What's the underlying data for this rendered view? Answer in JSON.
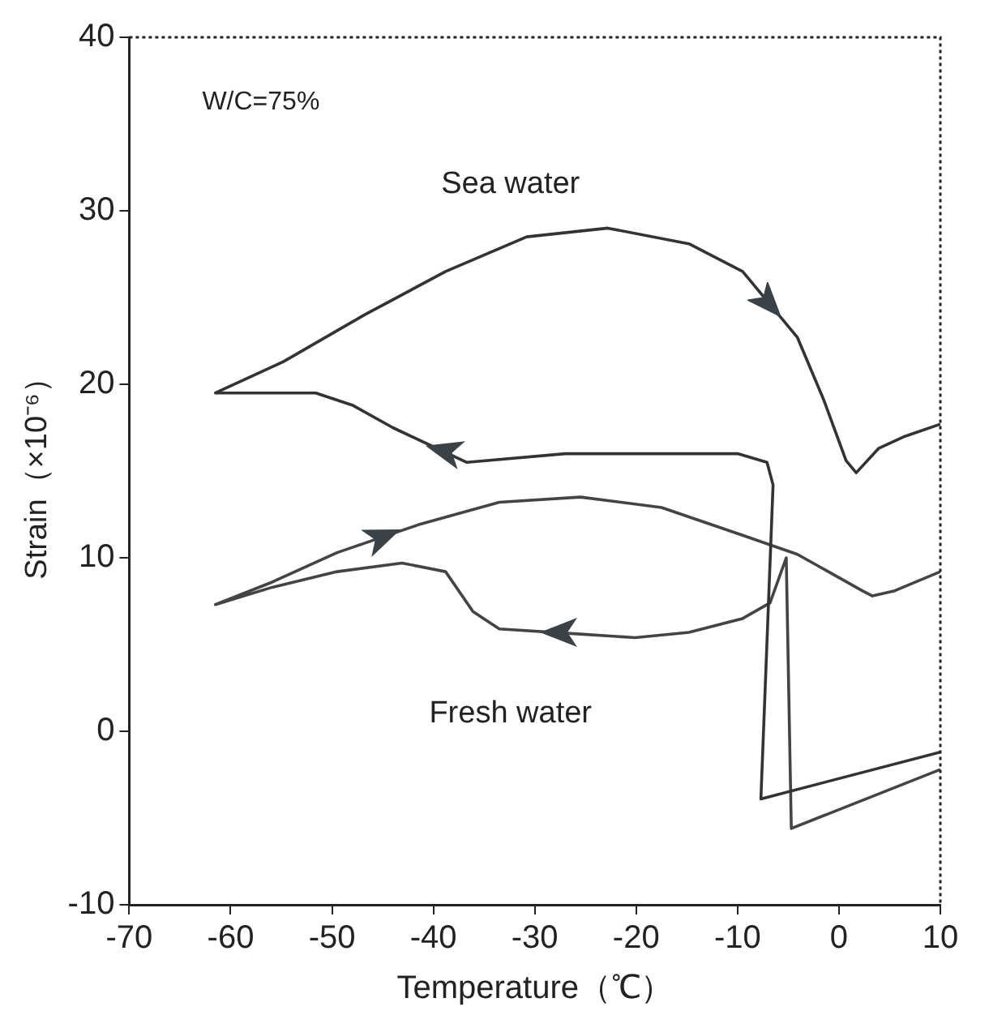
{
  "chart_data": {
    "type": "line",
    "xlabel": "Temperature（℃）",
    "ylabel": "Strain（×10⁻⁶）",
    "annotations": [
      "W/C=75%"
    ],
    "xlim": [
      -70,
      10
    ],
    "xticks": [
      -70,
      -60,
      -50,
      -40,
      -30,
      -20,
      -10,
      0,
      10
    ],
    "ylim": [
      -10,
      40
    ],
    "yticks": [
      -10,
      0,
      10,
      20,
      30,
      40
    ],
    "grid": false,
    "legend": false,
    "marker": "none",
    "line_style": "solid",
    "series": [
      {
        "name": "Sea water",
        "color": "#333333",
        "x": [
          10,
          -7.7,
          -6.5,
          -7.1,
          -10,
          -27,
          -36.7,
          -44,
          -48,
          -51.6,
          -61.5,
          -54.8,
          -46.8,
          -38.8,
          -30.8,
          -22.8,
          -14.8,
          -9.5,
          -4.1,
          -1.5,
          0.7,
          1.7,
          3.9,
          6.5,
          10
        ],
        "values": [
          -1.2,
          -3.9,
          14.2,
          15.5,
          16,
          16,
          15.5,
          17.5,
          18.8,
          19.5,
          19.5,
          21.3,
          24,
          26.5,
          28.5,
          29,
          28.1,
          26.5,
          22.7,
          19.1,
          15.6,
          14.9,
          16.3,
          17,
          17.7
        ]
      },
      {
        "name": "Fresh water",
        "color": "#444444",
        "x": [
          10,
          -4.7,
          -5.2,
          -6.8,
          -9.5,
          -14.8,
          -20.1,
          -25.5,
          -33.5,
          -36.1,
          -38.8,
          -43.1,
          -49.5,
          -55.9,
          -61.5,
          -55.9,
          -49.5,
          -41.5,
          -33.5,
          -25.5,
          -17.5,
          -9.5,
          -4.1,
          2.3,
          3.3,
          5.5,
          10
        ],
        "values": [
          -2.2,
          -5.6,
          10,
          7.4,
          6.5,
          5.7,
          5.4,
          5.6,
          5.9,
          6.9,
          9.2,
          9.7,
          9.2,
          8.3,
          7.3,
          8.6,
          10.3,
          11.9,
          13.2,
          13.5,
          12.9,
          11.3,
          10.2,
          8.1,
          7.8,
          8.1,
          9.2
        ]
      }
    ]
  }
}
